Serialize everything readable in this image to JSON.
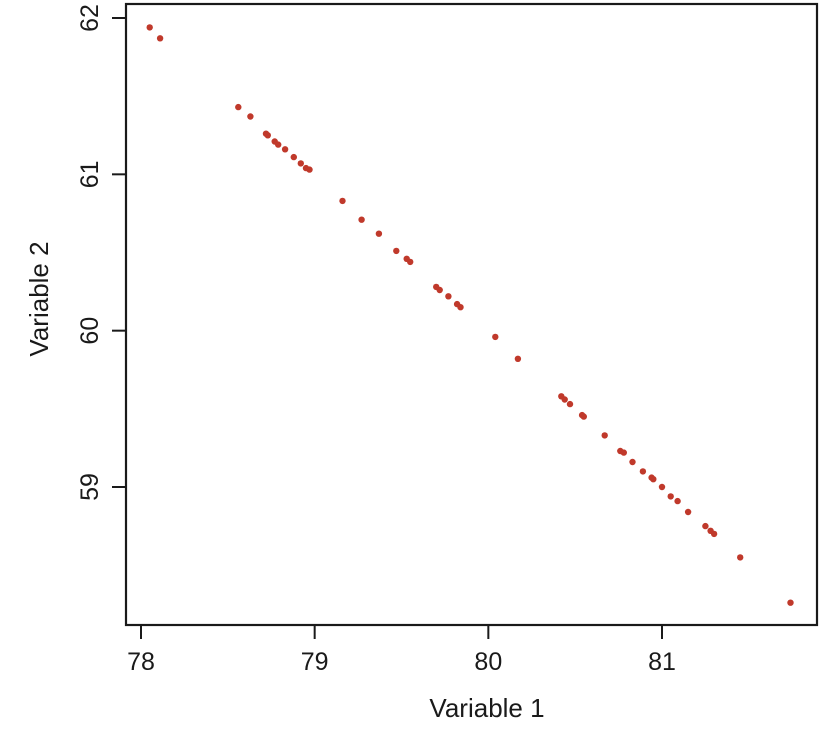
{
  "chart_data": {
    "type": "scatter",
    "title": "",
    "xlabel": "Variable 1",
    "ylabel": "Variable 2",
    "xlim": [
      77.9,
      81.9
    ],
    "ylim": [
      58.0,
      62.1
    ],
    "xticks": [
      78,
      79,
      80,
      81
    ],
    "yticks": [
      59,
      60,
      61,
      62
    ],
    "grid": false,
    "legend": "none",
    "point_color": "#c0392b",
    "series": [
      {
        "points": [
          [
            78.05,
            61.94
          ],
          [
            78.11,
            61.87
          ],
          [
            78.56,
            61.43
          ],
          [
            78.63,
            61.37
          ],
          [
            78.72,
            61.26
          ],
          [
            78.73,
            61.25
          ],
          [
            78.77,
            61.21
          ],
          [
            78.79,
            61.19
          ],
          [
            78.83,
            61.16
          ],
          [
            78.88,
            61.11
          ],
          [
            78.92,
            61.07
          ],
          [
            78.95,
            61.04
          ],
          [
            78.97,
            61.03
          ],
          [
            79.16,
            60.83
          ],
          [
            79.27,
            60.71
          ],
          [
            79.37,
            60.62
          ],
          [
            79.47,
            60.51
          ],
          [
            79.53,
            60.46
          ],
          [
            79.55,
            60.44
          ],
          [
            79.7,
            60.28
          ],
          [
            79.72,
            60.26
          ],
          [
            79.77,
            60.22
          ],
          [
            79.82,
            60.17
          ],
          [
            79.84,
            60.15
          ],
          [
            80.04,
            59.96
          ],
          [
            80.17,
            59.82
          ],
          [
            80.42,
            59.58
          ],
          [
            80.44,
            59.56
          ],
          [
            80.47,
            59.53
          ],
          [
            80.54,
            59.46
          ],
          [
            80.55,
            59.45
          ],
          [
            80.67,
            59.33
          ],
          [
            80.76,
            59.23
          ],
          [
            80.78,
            59.22
          ],
          [
            80.83,
            59.16
          ],
          [
            80.89,
            59.1
          ],
          [
            80.94,
            59.06
          ],
          [
            80.95,
            59.05
          ],
          [
            81.0,
            59.0
          ],
          [
            81.05,
            58.94
          ],
          [
            81.09,
            58.91
          ],
          [
            81.15,
            58.84
          ],
          [
            81.25,
            58.75
          ],
          [
            81.28,
            58.72
          ],
          [
            81.3,
            58.7
          ],
          [
            81.45,
            58.55
          ],
          [
            81.74,
            58.26
          ]
        ]
      }
    ]
  }
}
